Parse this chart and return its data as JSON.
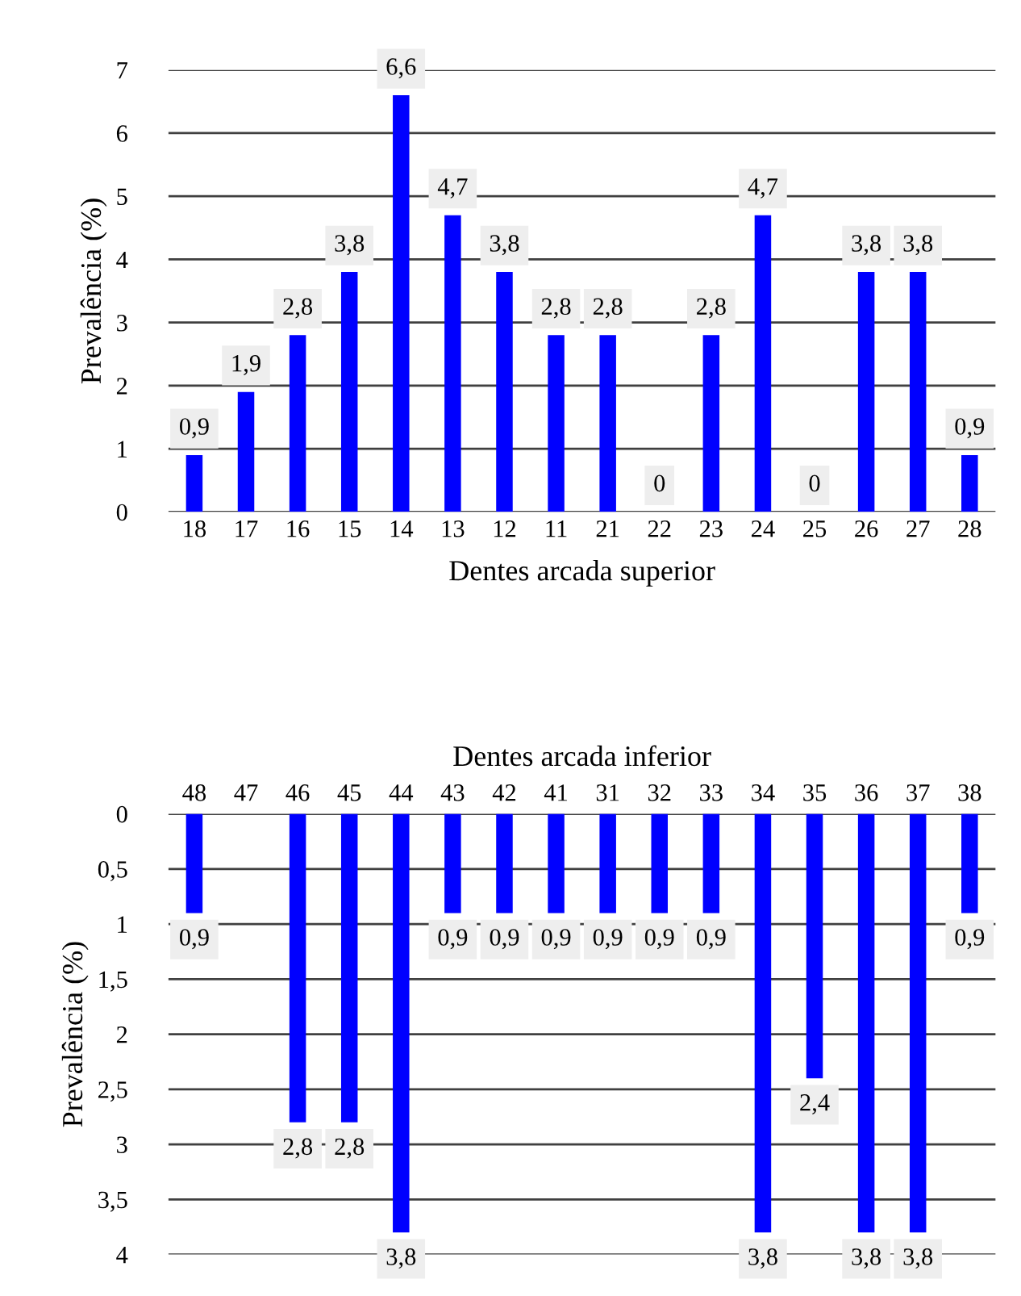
{
  "chart_data": [
    {
      "type": "bar",
      "xlabel": "Dentes arcada superior",
      "ylabel": "Prevalência (%)",
      "categories": [
        "18",
        "17",
        "16",
        "15",
        "14",
        "13",
        "12",
        "11",
        "21",
        "22",
        "23",
        "24",
        "25",
        "26",
        "27",
        "28"
      ],
      "values": [
        0.9,
        1.9,
        2.8,
        3.8,
        6.6,
        4.7,
        3.8,
        2.8,
        2.8,
        0,
        2.8,
        4.7,
        0,
        3.8,
        3.8,
        0.9
      ],
      "value_labels": [
        "0,9",
        "1,9",
        "2,8",
        "3,8",
        "6,6",
        "4,7",
        "3,8",
        "2,8",
        "2,8",
        "0",
        "2,8",
        "4,7",
        "0",
        "3,8",
        "3,8",
        "0,9"
      ],
      "color": "#0000ff",
      "ylim": [
        0,
        7
      ],
      "yticks": [
        0,
        1,
        2,
        3,
        4,
        5,
        6,
        7
      ],
      "grid": "y"
    },
    {
      "type": "bar",
      "xlabel": "Dentes arcada inferior",
      "ylabel": "Prevalência (%)",
      "categories": [
        "48",
        "47",
        "46",
        "45",
        "44",
        "43",
        "42",
        "41",
        "31",
        "32",
        "33",
        "34",
        "35",
        "36",
        "37",
        "38"
      ],
      "values": [
        0.9,
        0,
        2.8,
        2.8,
        3.8,
        0.9,
        0.9,
        0.9,
        0.9,
        0.9,
        0.9,
        3.8,
        2.4,
        3.8,
        3.8,
        0.9
      ],
      "value_labels": [
        "0,9",
        null,
        "2,8",
        "2,8",
        "3,8",
        "0,9",
        "0,9",
        "0,9",
        "0,9",
        "0,9",
        "0,9",
        "3,8",
        "2,4",
        "3,8",
        "3,8",
        "0,9"
      ],
      "color": "#0000ff",
      "ylim": [
        4,
        0
      ],
      "yticks": [
        0,
        {
          "value": 0.5,
          "label": "0,5"
        },
        1,
        {
          "value": 1.5,
          "label": "1,5"
        },
        2,
        {
          "value": 2.5,
          "label": "2,5"
        },
        3,
        {
          "value": 3.5,
          "label": "3,5"
        },
        4
      ],
      "grid": "y"
    }
  ]
}
